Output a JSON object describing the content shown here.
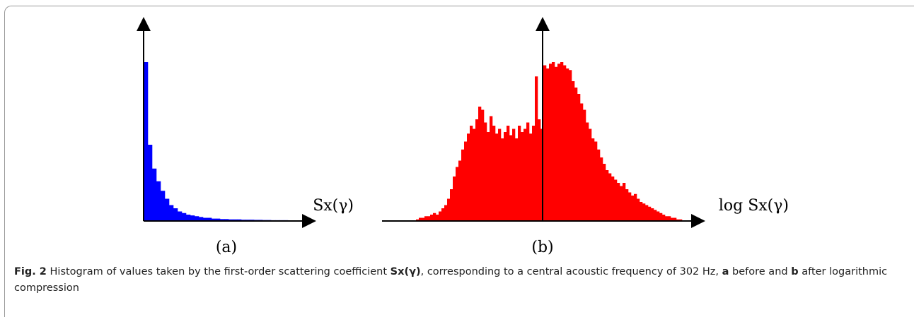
{
  "chart_data": [
    {
      "type": "histogram",
      "x_label": "Sx(γ)",
      "panel_label": "(a)",
      "color": "#0000ff",
      "ylim": [
        0,
        100
      ],
      "values": [
        100,
        48,
        33,
        25,
        19,
        14,
        10,
        8,
        6,
        5,
        4,
        3.5,
        3,
        2.5,
        2,
        2,
        1.5,
        1.5,
        1.2,
        1.2,
        1,
        1,
        1,
        0.8,
        0.8,
        0.8,
        0.7,
        0.7,
        0.6,
        0.6,
        0.5,
        0.5,
        0.5,
        0.5,
        0.4,
        0.4,
        0.4,
        0.4
      ]
    },
    {
      "type": "histogram",
      "x_label": "log Sx(γ)",
      "panel_label": "(b)",
      "color": "#ff0000",
      "ylim": [
        0,
        100
      ],
      "values": [
        1,
        2,
        2,
        3,
        3,
        4,
        5,
        4,
        6,
        8,
        10,
        14,
        20,
        28,
        34,
        38,
        45,
        50,
        55,
        60,
        58,
        64,
        72,
        70,
        62,
        56,
        66,
        60,
        55,
        58,
        52,
        56,
        60,
        54,
        58,
        52,
        60,
        56,
        58,
        62,
        55,
        60,
        91,
        64,
        58,
        98,
        96,
        99,
        100,
        97,
        99,
        100,
        98,
        96,
        95,
        88,
        84,
        80,
        74,
        70,
        62,
        58,
        52,
        50,
        45,
        40,
        36,
        32,
        30,
        28,
        26,
        24,
        22,
        24,
        20,
        18,
        16,
        17,
        14,
        12,
        11,
        10,
        9,
        8,
        7,
        6,
        5,
        4,
        3,
        3,
        2,
        2,
        1,
        1
      ]
    }
  ],
  "caption": {
    "parts": [
      "Fig. 2",
      " Histogram of values taken by the first-order scattering coefficient ",
      "Sx(γ)",
      ", corresponding to a central acoustic frequency of 302 Hz, ",
      "a",
      " before and ",
      "b",
      " after logarithmic compression"
    ]
  }
}
